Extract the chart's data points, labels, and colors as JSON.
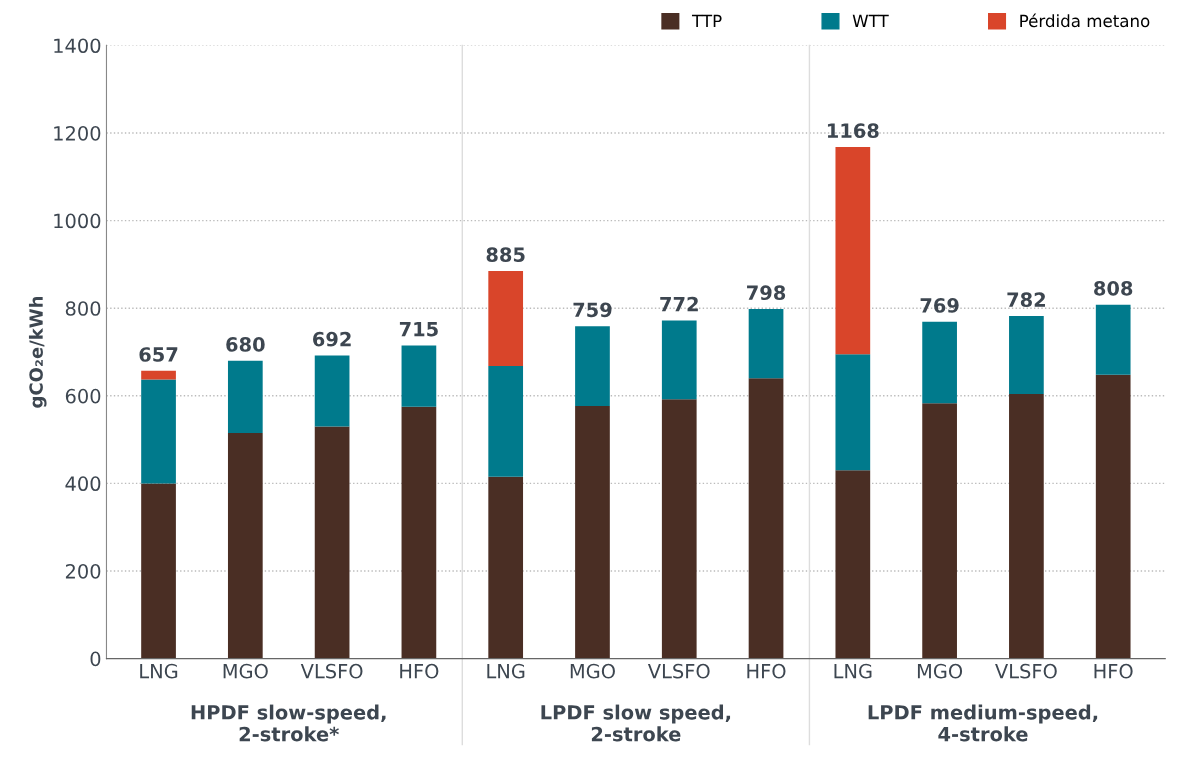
{
  "chart_data": {
    "type": "bar",
    "stacked": true,
    "ylabel": "gCO₂e/kWh",
    "categories": [
      "LNG",
      "MGO",
      "VLSFO",
      "HFO",
      "LNG",
      "MGO",
      "VLSFO",
      "HFO",
      "LNG",
      "MGO",
      "VLSFO",
      "HFO"
    ],
    "series": [
      {
        "name": "TTP",
        "color": "#4a2e24",
        "values": [
          400,
          515,
          530,
          575,
          415,
          577,
          592,
          640,
          430,
          583,
          604,
          648
        ]
      },
      {
        "name": "WTT",
        "color": "#007a8c",
        "values": [
          237,
          165,
          162,
          140,
          253,
          182,
          180,
          158,
          265,
          186,
          178,
          160
        ]
      },
      {
        "name": "Pérdida metano",
        "color": "#d9452a",
        "values": [
          20,
          null,
          null,
          null,
          217,
          null,
          null,
          null,
          473,
          null,
          null,
          null
        ]
      }
    ],
    "totals": [
      "657",
      "680",
      "692",
      "715",
      "885",
      "759",
      "772",
      "798",
      "1168",
      "769",
      "782",
      "808"
    ],
    "annotations": [
      "HPDF slow-speed,\n2-stroke*",
      "LPDF slow speed,\n2-stroke",
      "LPDF medium-speed,\n4-stroke"
    ],
    "ylim": [
      0,
      1400
    ],
    "yticks": [
      0,
      200,
      400,
      600,
      800,
      1000,
      1200,
      1400
    ],
    "grid": "y",
    "legend": "top right"
  }
}
